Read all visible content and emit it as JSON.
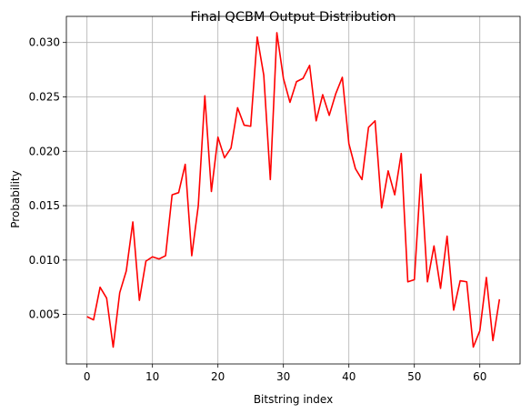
{
  "chart_data": {
    "type": "line",
    "title": "Final QCBM Output Distribution",
    "xlabel": "Bitstring index",
    "ylabel": "Probability",
    "xlim": [
      -3.15,
      66.15
    ],
    "ylim": [
      0.00045,
      0.0324
    ],
    "xticks": [
      0,
      10,
      20,
      30,
      40,
      50,
      60
    ],
    "xtick_labels": [
      "0",
      "10",
      "20",
      "30",
      "40",
      "50",
      "60"
    ],
    "yticks": [
      0.005,
      0.01,
      0.015,
      0.02,
      0.025,
      0.03
    ],
    "ytick_labels": [
      "0.005",
      "0.010",
      "0.015",
      "0.020",
      "0.025",
      "0.030"
    ],
    "grid": true,
    "color": "#ff0000",
    "series": [
      {
        "x": [
          0,
          1,
          2,
          3,
          4,
          5,
          6,
          7,
          8,
          9,
          10,
          11,
          12,
          13,
          14,
          15,
          16,
          17,
          18,
          19,
          20,
          21,
          22,
          23,
          24,
          25,
          26,
          27,
          28,
          29,
          30,
          31,
          32,
          33,
          34,
          35,
          36,
          37,
          38,
          39,
          40,
          41,
          42,
          43,
          44,
          45,
          46,
          47,
          48,
          49,
          50,
          51,
          52,
          53,
          54,
          55,
          56,
          57,
          58,
          59,
          60,
          61,
          62,
          63
        ],
        "values": [
          0.0048,
          0.0045,
          0.0075,
          0.0065,
          0.002,
          0.007,
          0.009,
          0.0135,
          0.0063,
          0.0099,
          0.0103,
          0.0101,
          0.0104,
          0.016,
          0.0162,
          0.0188,
          0.0104,
          0.015,
          0.0251,
          0.0163,
          0.0213,
          0.0194,
          0.0203,
          0.024,
          0.0224,
          0.0223,
          0.0305,
          0.027,
          0.0174,
          0.0309,
          0.0267,
          0.0245,
          0.0264,
          0.0267,
          0.0279,
          0.0228,
          0.0252,
          0.0233,
          0.0253,
          0.0268,
          0.0207,
          0.0184,
          0.0174,
          0.0222,
          0.0228,
          0.0148,
          0.0182,
          0.016,
          0.0198,
          0.008,
          0.0082,
          0.0179,
          0.008,
          0.0113,
          0.0074,
          0.0122,
          0.0054,
          0.0081,
          0.008,
          0.002,
          0.0035,
          0.0084,
          0.0026,
          0.0064
        ]
      }
    ]
  }
}
